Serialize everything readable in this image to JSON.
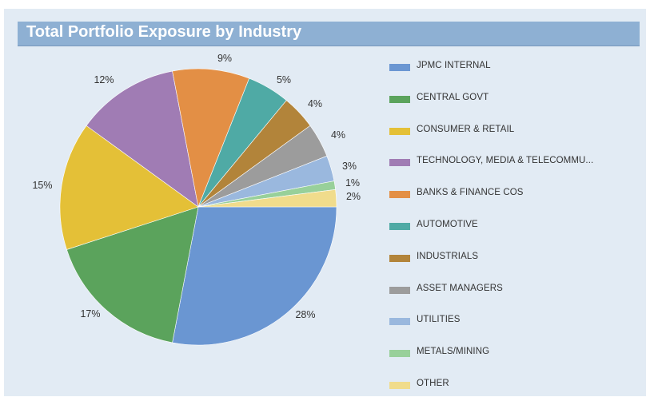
{
  "chart_data": {
    "type": "pie",
    "title": "Total Portfolio Exposure by Industry",
    "slices": [
      {
        "label": "JPMC INTERNAL",
        "value": 28,
        "display": "28%",
        "color": "#6a96d2"
      },
      {
        "label": "CENTRAL GOVT",
        "value": 17,
        "display": "17%",
        "color": "#5ba35c"
      },
      {
        "label": "CONSUMER & RETAIL",
        "value": 15,
        "display": "15%",
        "color": "#e4c037"
      },
      {
        "label": "TECHNOLOGY, MEDIA & TELECOMMU...",
        "value": 12,
        "display": "12%",
        "color": "#a07cb4"
      },
      {
        "label": "BANKS & FINANCE COS",
        "value": 9,
        "display": "9%",
        "color": "#e38f45"
      },
      {
        "label": "AUTOMOTIVE",
        "value": 5,
        "display": "5%",
        "color": "#4faaa5"
      },
      {
        "label": "INDUSTRIALS",
        "value": 4,
        "display": "4%",
        "color": "#b2843a"
      },
      {
        "label": "ASSET MANAGERS",
        "value": 4,
        "display": "4%",
        "color": "#9c9c9c"
      },
      {
        "label": "UTILITIES",
        "value": 3,
        "display": "3%",
        "color": "#9ab8de"
      },
      {
        "label": "METALS/MINING",
        "value": 1,
        "display": "1%",
        "color": "#98d09a"
      },
      {
        "label": "OTHER",
        "value": 2,
        "display": "2%",
        "color": "#f0dc8c"
      }
    ],
    "start_angle_deg": 0,
    "direction": "counterclockwise-from-3-oclock",
    "legend_position": "right"
  }
}
